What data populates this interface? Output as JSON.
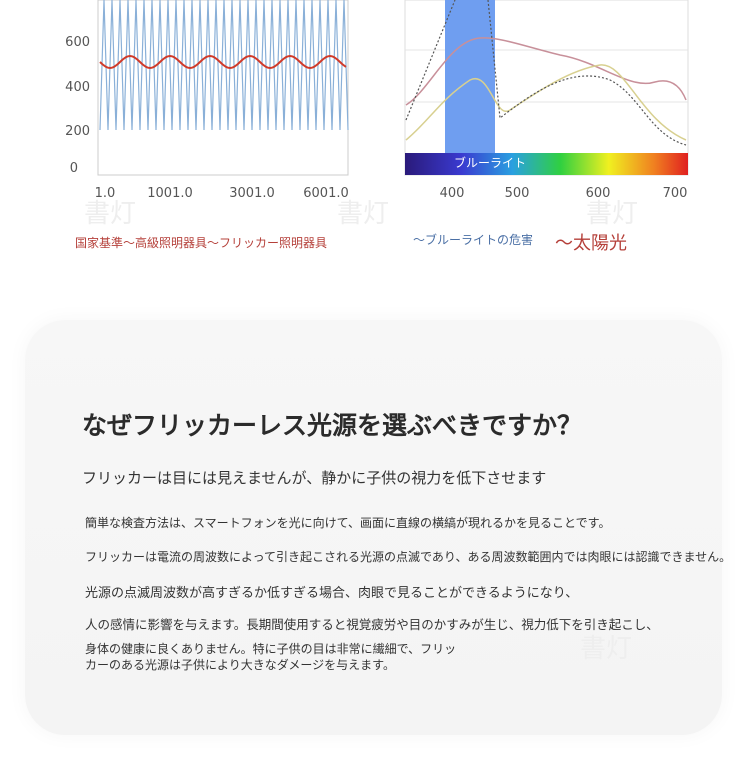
{
  "left_figure": {
    "yticks": [
      "600",
      "400",
      "200",
      "0"
    ],
    "xticks": [
      "1.0",
      "1001.0",
      "3001.0",
      "6001.0"
    ],
    "caption": "国家基準〜高級照明器具〜フリッカー照明器具"
  },
  "right_figure": {
    "band_label": "ブルーライト",
    "xticks": [
      "400",
      "500",
      "600",
      "700"
    ],
    "caption": "〜ブルーライトの危害",
    "caption2": "〜太陽光"
  },
  "watermark": "書灯",
  "card": {
    "title": "なぜフリッカーレス光源を選ぶべきですか？",
    "subtitle": "フリッカーは目には見えませんが、静かに子供の視力を低下させます",
    "paragraphs": [
      "簡単な検査方法は、スマートフォンを光に向けて、画面に直線の横縞が現れるかを見ることです。",
      "フリッカーは電流の周波数によって引き起こされる光源の点滅であり、ある周波数範囲内では肉眼には認識できません。",
      "光源の点滅周波数が高すぎるか低すぎる場合、肉眼で見ることができるようになり、",
      "人の感情に影響を与えます。長期間使用すると視覚疲労や目のかすみが生じ、視力低下を引き起こし、",
      "身体の健康に良くありません。特に子供の目は非常に繊細で、フリッ",
      "カーのある光源は子供により大きなダメージを与えます。"
    ]
  }
}
